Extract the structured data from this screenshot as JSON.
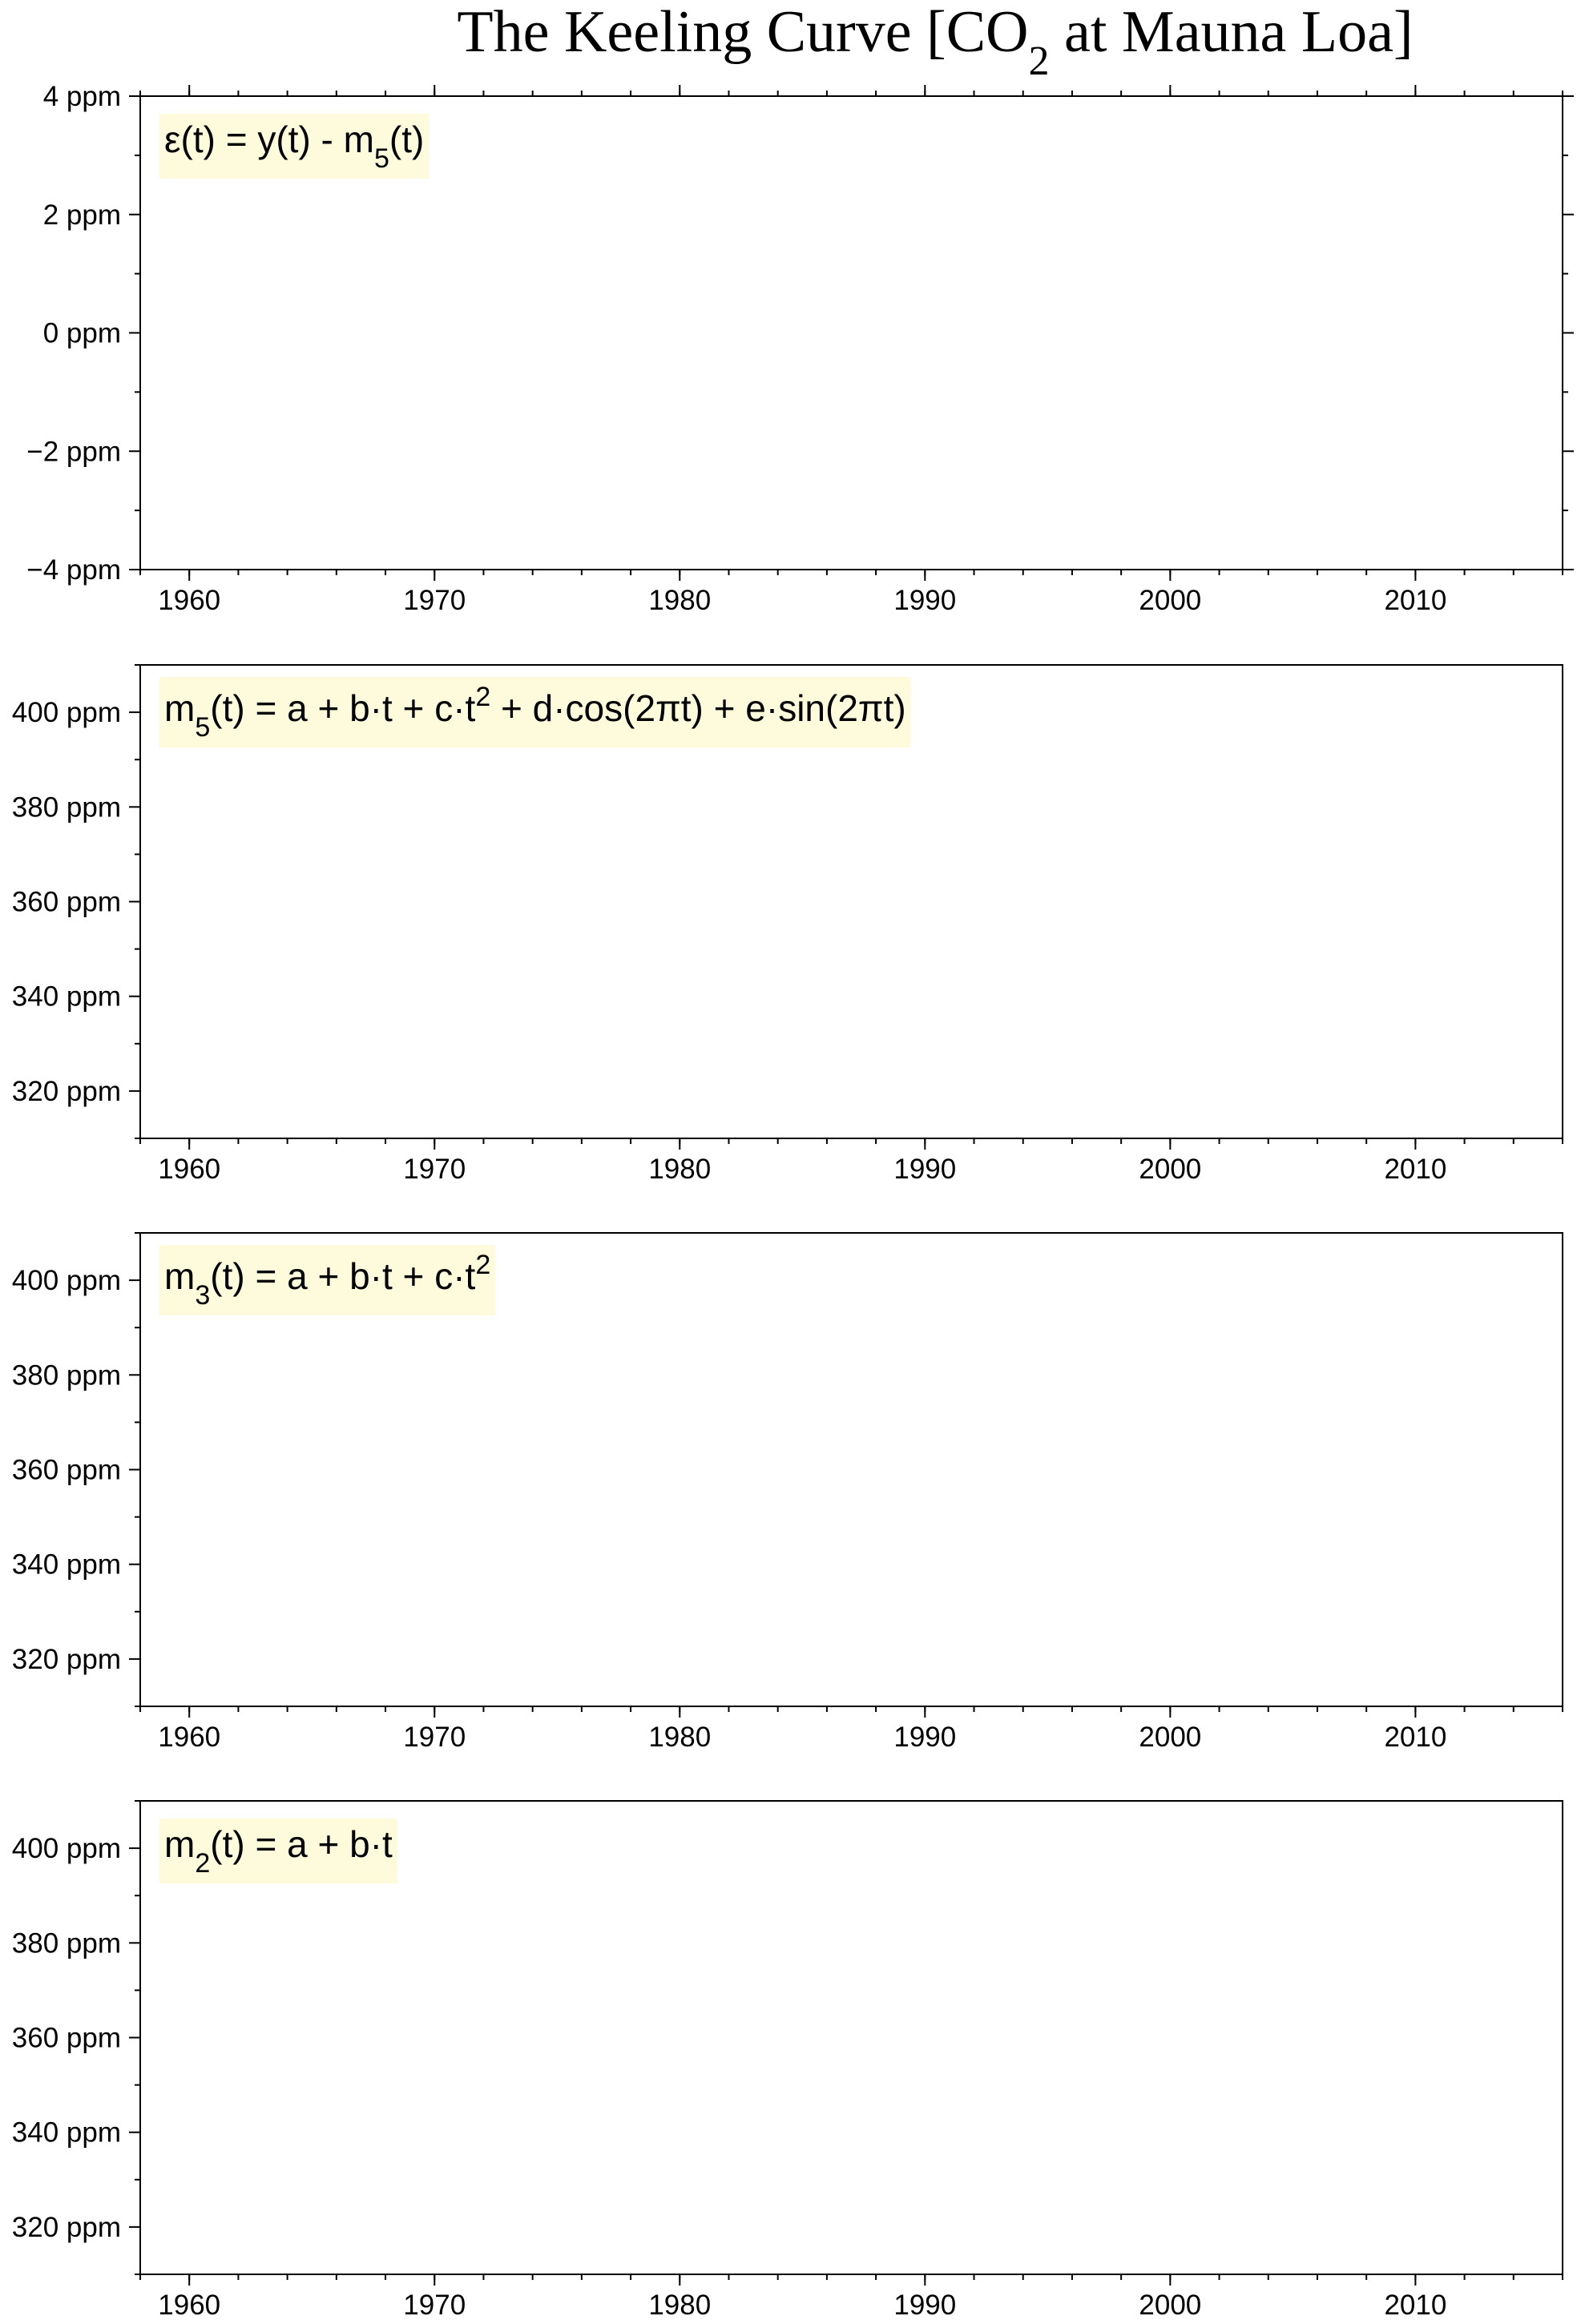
{
  "chart_data": {
    "type": "line",
    "title": {
      "main": "The Keeling Curve [CO",
      "sub": "2",
      "rest": " at Mauna Loa]"
    },
    "x_tick_labels": [
      "1960",
      "1970",
      "1980",
      "1990",
      "2000",
      "2010"
    ],
    "panels": [
      {
        "formula": [
          {
            "t": "ε(t) = y(t) - m"
          },
          {
            "t": "5",
            "sub": true
          },
          {
            "t": "(t)"
          }
        ],
        "xlim": [
          1958,
          2016
        ],
        "ylim": [
          -4,
          4
        ],
        "y_ticks": [
          -4,
          -2,
          0,
          2,
          4
        ],
        "y_tick_labels": [
          "−4 ppm",
          "−2 ppm",
          "0 ppm",
          "2 ppm",
          "4 ppm"
        ],
        "x_ticks": [
          1960,
          1970,
          1980,
          1990,
          2000,
          2010
        ],
        "series": []
      },
      {
        "formula": [
          {
            "t": "m"
          },
          {
            "t": "5",
            "sub": true
          },
          {
            "t": "(t) = a + b·t + c·t"
          },
          {
            "t": "2",
            "sup": true
          },
          {
            "t": " + d·cos(2πt) + e·sin(2πt)"
          }
        ],
        "xlim": [
          1958,
          2016
        ],
        "ylim": [
          310,
          410
        ],
        "y_ticks": [
          320,
          340,
          360,
          380,
          400
        ],
        "y_tick_labels": [
          "320 ppm",
          "340 ppm",
          "360 ppm",
          "380 ppm",
          "400 ppm"
        ],
        "x_ticks": [
          1960,
          1970,
          1980,
          1990,
          2000,
          2010
        ],
        "series": []
      },
      {
        "formula": [
          {
            "t": "m"
          },
          {
            "t": "3",
            "sub": true
          },
          {
            "t": "(t) = a + b·t + c·t"
          },
          {
            "t": "2",
            "sup": true
          }
        ],
        "xlim": [
          1958,
          2016
        ],
        "ylim": [
          310,
          410
        ],
        "y_ticks": [
          320,
          340,
          360,
          380,
          400
        ],
        "y_tick_labels": [
          "320 ppm",
          "340 ppm",
          "360 ppm",
          "380 ppm",
          "400 ppm"
        ],
        "x_ticks": [
          1960,
          1970,
          1980,
          1990,
          2000,
          2010
        ],
        "series": []
      },
      {
        "formula": [
          {
            "t": "m"
          },
          {
            "t": "2",
            "sub": true
          },
          {
            "t": "(t) = a + b·t"
          }
        ],
        "xlim": [
          1958,
          2016
        ],
        "ylim": [
          310,
          410
        ],
        "y_ticks": [
          320,
          340,
          360,
          380,
          400
        ],
        "y_tick_labels": [
          "320 ppm",
          "340 ppm",
          "360 ppm",
          "380 ppm",
          "400 ppm"
        ],
        "x_ticks": [
          1960,
          1970,
          1980,
          1990,
          2000,
          2010
        ],
        "series": []
      }
    ],
    "grid": false,
    "colors": {
      "formula_background": "#fdfbdc",
      "axes": "#000000"
    }
  }
}
